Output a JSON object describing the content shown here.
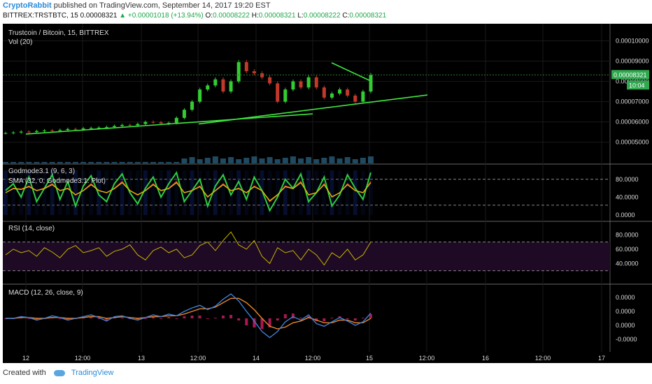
{
  "header": {
    "author": "CryptoRabbit",
    "published": "published on TradingView.com, September 14, 2017 19:20 EST",
    "symbol": "BITTREX:TRSTBTC, 15",
    "last": "0.00008321",
    "change": "▲ +0.00001018 (+13.94%)",
    "o_label": "O:",
    "o": "0.00008222",
    "h_label": "H:",
    "h": "0.00008321",
    "l_label": "L:",
    "l": "0.00008222",
    "c_label": "C:",
    "c": "0.00008321"
  },
  "footer": {
    "created_with": "Created with",
    "brand": "TradingView"
  },
  "colors": {
    "background": "#000000",
    "up": "#33cc33",
    "down": "#c0392b",
    "trendline": "#3fe73f",
    "rsi": "#c8b400",
    "rsi_band": "#1e0a24",
    "macd": "#3d7fd6",
    "signal": "#e8862a",
    "hist_neg": "#c2185b",
    "godmode_fast": "#2ecc40",
    "godmode_slow": "#c0392b",
    "volume": "#2d6a8a"
  },
  "chart_data": [
    {
      "type": "line",
      "title": "Trustcoin / Bitcoin, 15, BITTREX",
      "subtitle": "Vol (20)",
      "x_ticks": [
        "12",
        "12:00",
        "13",
        "12:00",
        "14",
        "12:00",
        "15",
        "12:00",
        "16",
        "12:00",
        "17"
      ],
      "y_ticks": [
        "0.00010000",
        "0.00009000",
        "0.00008000",
        "0.00007000",
        "0.00006000",
        "0.00005000"
      ],
      "ylim": [
        4.3e-05,
        0.000105
      ],
      "price_label": "0.00008321",
      "countdown": "10:04",
      "close": [
        5.45e-05,
        5.48e-05,
        5.52e-05,
        5.5e-05,
        5.55e-05,
        5.58e-05,
        5.56e-05,
        5.6e-05,
        5.65e-05,
        5.63e-05,
        5.68e-05,
        5.7e-05,
        5.72e-05,
        5.75e-05,
        5.8e-05,
        5.85e-05,
        5.83e-05,
        5.9e-05,
        6e-05,
        5.98e-05,
        5.92e-05,
        5.95e-05,
        6.2e-05,
        6.6e-05,
        7e-05,
        7.6e-05,
        7.8e-05,
        8.1e-05,
        7.5e-05,
        8e-05,
        8.95e-05,
        8.5e-05,
        8.4e-05,
        8.2e-05,
        7.9e-05,
        7e-05,
        7.6e-05,
        8e-05,
        7.7e-05,
        8.2e-05,
        7.7e-05,
        7.2e-05,
        7.4e-05,
        7.6e-05,
        7.3e-05,
        7e-05,
        7.5e-05,
        8.32e-05
      ],
      "trendlines": [
        {
          "from": [
            "12",
            5.4e-05
          ],
          "to": [
            "14 12:00",
            6.4e-05
          ]
        },
        {
          "from": [
            "13 12:00",
            5.9e-05
          ],
          "to": [
            "15 12:00",
            7.33e-05
          ]
        },
        {
          "from": [
            "14 16:00",
            8.92e-05
          ],
          "to": [
            "15",
            8.05e-05
          ]
        }
      ]
    },
    {
      "type": "line",
      "title": "Godmode3.1 (9, 6, 3)",
      "subtitle": "SMA (32, 0, Godmode3.1: Plot)",
      "y_ticks": [
        "80.0000",
        "40.0000",
        "0.0000"
      ],
      "levels": [
        80,
        22
      ],
      "fast": [
        55,
        70,
        40,
        85,
        30,
        60,
        90,
        35,
        75,
        20,
        65,
        88,
        45,
        30,
        70,
        92,
        50,
        25,
        60,
        85,
        40,
        70,
        95,
        30,
        55,
        80,
        20,
        65,
        90,
        45,
        75,
        35,
        85,
        55,
        10,
        40,
        80,
        60,
        92,
        30,
        50,
        85,
        20,
        45,
        90,
        60,
        35,
        95
      ],
      "slow": [
        50,
        60,
        58,
        65,
        55,
        60,
        70,
        55,
        60,
        45,
        55,
        70,
        55,
        50,
        60,
        75,
        55,
        45,
        55,
        70,
        55,
        60,
        75,
        50,
        55,
        65,
        40,
        55,
        70,
        55,
        60,
        50,
        65,
        55,
        30,
        45,
        65,
        60,
        75,
        45,
        50,
        70,
        40,
        50,
        70,
        55,
        50,
        75
      ]
    },
    {
      "type": "line",
      "title": "RSI (14, close)",
      "y_ticks": [
        "80.0000",
        "60.0000",
        "40.0000"
      ],
      "bands": [
        70,
        30
      ],
      "values": [
        52,
        60,
        55,
        58,
        50,
        62,
        56,
        48,
        60,
        65,
        55,
        58,
        62,
        50,
        57,
        60,
        66,
        52,
        45,
        58,
        63,
        55,
        60,
        48,
        52,
        65,
        70,
        58,
        72,
        84,
        66,
        60,
        72,
        50,
        40,
        62,
        55,
        58,
        45,
        60,
        52,
        38,
        55,
        48,
        60,
        45,
        52,
        70
      ]
    },
    {
      "type": "line",
      "title": "MACD (12, 26, close, 9)",
      "y_ticks": [
        "0.0000",
        "0.0000",
        "0.0000",
        "-0.0000"
      ],
      "macd": [
        0,
        0,
        0.2,
        0.1,
        -0.2,
        0,
        0.3,
        0.1,
        -0.2,
        0,
        0.2,
        0.4,
        0.1,
        -0.3,
        0.2,
        0.3,
        0,
        -0.2,
        0.1,
        0.4,
        0.2,
        0.5,
        0.3,
        0.8,
        1.2,
        1.5,
        1.0,
        1.4,
        2.2,
        2.8,
        2.0,
        0.8,
        -0.3,
        -1.5,
        -2.2,
        -1.5,
        -0.4,
        0.2,
        -0.2,
        0.4,
        -0.6,
        -0.9,
        -0.4,
        0.1,
        -0.3,
        -0.8,
        -0.4,
        0.6
      ],
      "signal": [
        0,
        0,
        0.1,
        0.1,
        0,
        0,
        0.1,
        0.1,
        0,
        0,
        0.1,
        0.2,
        0.2,
        0,
        0.1,
        0.2,
        0.1,
        0,
        0.1,
        0.2,
        0.2,
        0.3,
        0.3,
        0.5,
        0.8,
        1.1,
        1.1,
        1.3,
        1.8,
        2.3,
        2.3,
        1.8,
        1.0,
        0.0,
        -0.9,
        -1.2,
        -1.0,
        -0.5,
        -0.3,
        0.1,
        -0.2,
        -0.5,
        -0.5,
        -0.2,
        -0.2,
        -0.5,
        -0.5,
        0.0
      ]
    }
  ]
}
